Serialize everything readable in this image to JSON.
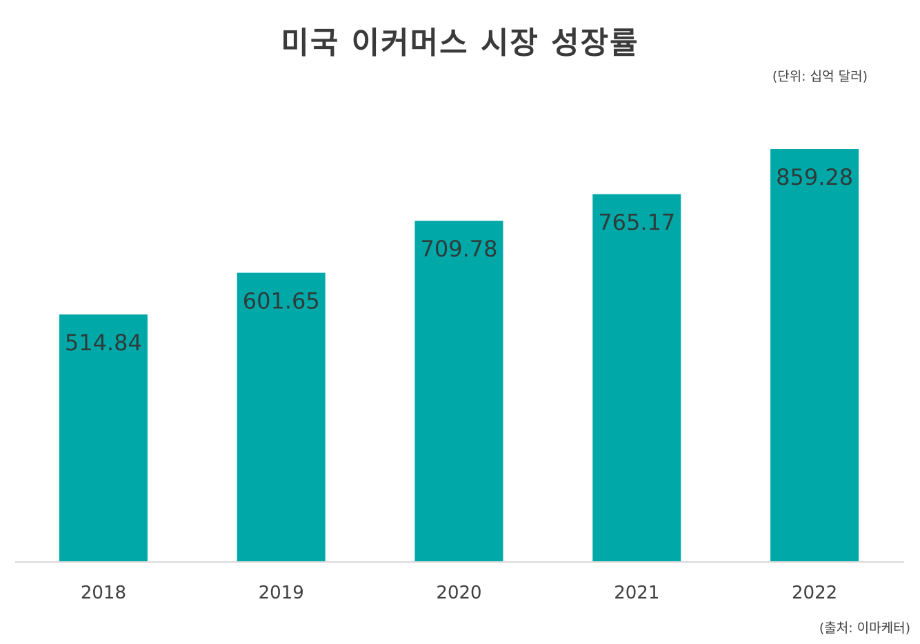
{
  "chart_data": {
    "type": "bar",
    "title": "미국 이커머스 시장 성장률",
    "unit": "(단위: 십억 달러)",
    "source": "(출처: 이마케터)",
    "categories": [
      "2018",
      "2019",
      "2020",
      "2021",
      "2022"
    ],
    "values": [
      514.84,
      601.65,
      709.78,
      765.17,
      859.28
    ],
    "value_labels": [
      "514.84",
      "601.65",
      "709.78",
      "765.17",
      "859.28"
    ],
    "bar_color": "#00A9A8",
    "axis_color": "#d9d9d9",
    "ylim": [
      0,
      859.28
    ],
    "grid": false,
    "legend": "none"
  }
}
